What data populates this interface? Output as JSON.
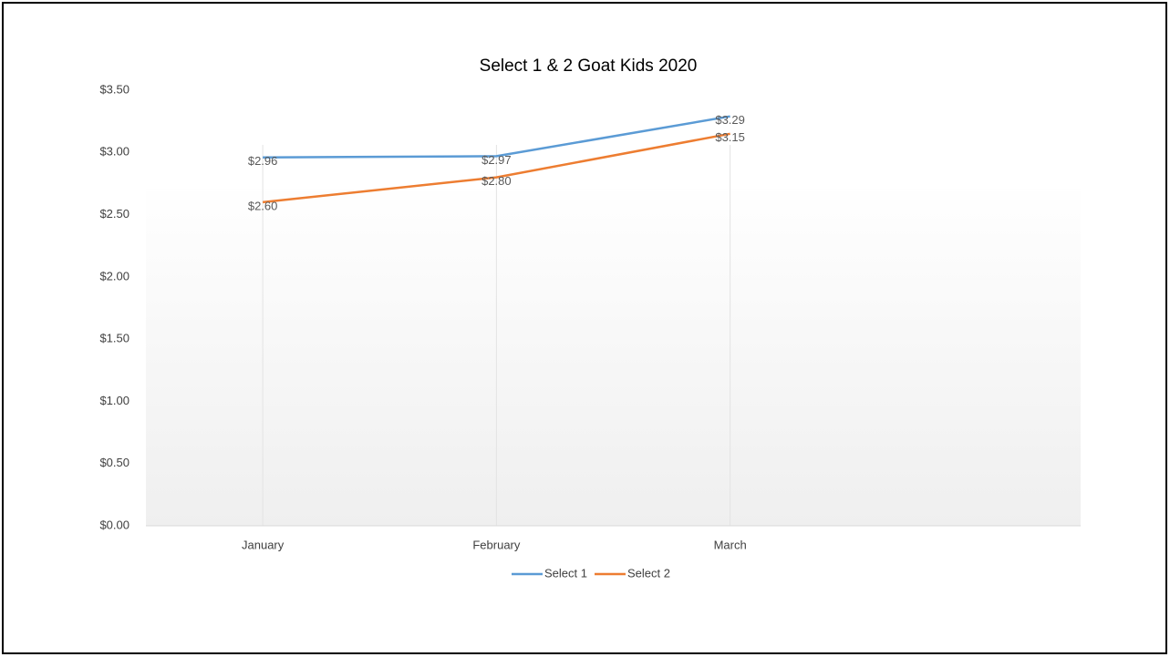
{
  "chart_data": {
    "type": "line",
    "title": "Select 1 & 2 Goat Kids 2020",
    "categories": [
      "January",
      "February",
      "March",
      null
    ],
    "series": [
      {
        "name": "Select 1",
        "color": "#5b9bd5",
        "values": [
          2.96,
          2.97,
          3.29,
          null
        ],
        "value_labels": [
          "$2.96",
          "$2.97",
          "$3.29",
          null
        ]
      },
      {
        "name": "Select 2",
        "color": "#ed7d31",
        "values": [
          2.6,
          2.8,
          3.15,
          null
        ],
        "value_labels": [
          "$2.60",
          "$2.80",
          "$3.15",
          null
        ]
      }
    ],
    "ylim": [
      0,
      3.5
    ],
    "yticks": [
      {
        "value": 0,
        "label": "$0.00"
      },
      {
        "value": 0.5,
        "label": "$0.50"
      },
      {
        "value": 1,
        "label": "$1.00"
      },
      {
        "value": 1.5,
        "label": "$1.50"
      },
      {
        "value": 2,
        "label": "$2.00"
      },
      {
        "value": 2.5,
        "label": "$2.50"
      },
      {
        "value": 3,
        "label": "$3.00"
      },
      {
        "value": 3.5,
        "label": "$3.50"
      }
    ],
    "grid": false,
    "legend": "bottom"
  }
}
